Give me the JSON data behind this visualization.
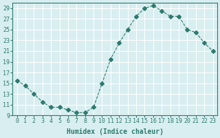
{
  "x": [
    0,
    1,
    2,
    3,
    4,
    5,
    6,
    7,
    8,
    9,
    10,
    11,
    12,
    13,
    14,
    15,
    16,
    17,
    18,
    19,
    20,
    21,
    22,
    23
  ],
  "y": [
    15.5,
    14.5,
    13.0,
    11.5,
    10.5,
    10.5,
    10.0,
    9.5,
    9.5,
    10.5,
    15.0,
    19.5,
    22.5,
    25.0,
    27.5,
    29.0,
    29.5,
    28.5,
    27.5,
    27.5,
    25.0,
    24.5,
    22.5,
    21.0
  ],
  "line_color": "#2d7a6e",
  "marker": "D",
  "marker_size": 3,
  "line_width": 0.8,
  "bg_color": "#d8eef0",
  "grid_color": "#ffffff",
  "xlabel": "Humidex (Indice chaleur)",
  "xlim": [
    -0.5,
    23.5
  ],
  "ylim": [
    9,
    30
  ],
  "yticks": [
    9,
    11,
    13,
    15,
    17,
    19,
    21,
    23,
    25,
    27,
    29
  ],
  "xticks": [
    0,
    1,
    2,
    3,
    4,
    5,
    6,
    7,
    8,
    9,
    10,
    11,
    12,
    13,
    14,
    15,
    16,
    17,
    18,
    19,
    20,
    21,
    22,
    23
  ],
  "xlabel_fontsize": 7,
  "tick_fontsize": 6,
  "tick_color": "#2d7a6e",
  "axis_color": "#2d7a6e"
}
